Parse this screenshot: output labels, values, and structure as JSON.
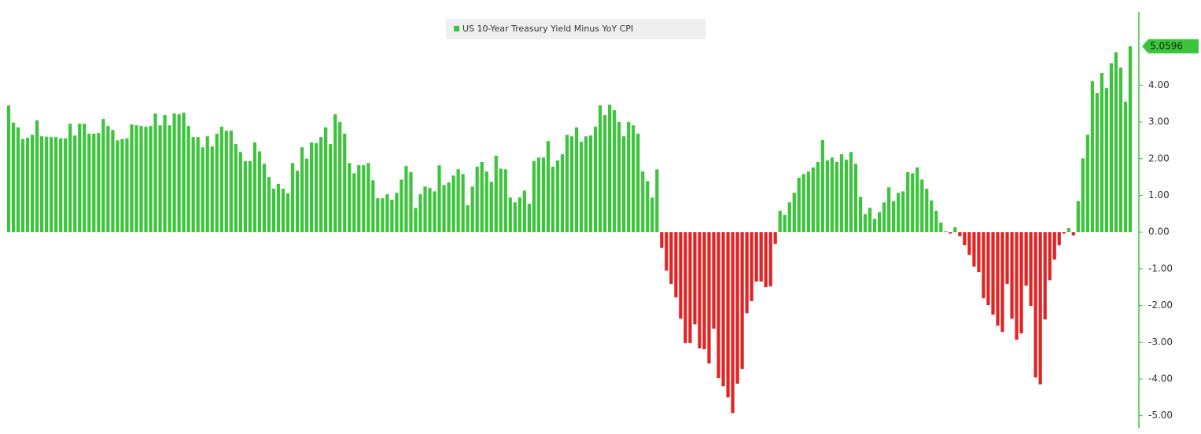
{
  "chart_data": {
    "type": "bar",
    "series": [
      {
        "name": "US 10-Year Treasury Yield Minus YoY CPI",
        "color": "#3cc43c",
        "negative_color": "#e02424",
        "values": [
          3.45,
          2.98,
          2.85,
          2.53,
          2.57,
          2.65,
          3.04,
          2.61,
          2.6,
          2.59,
          2.59,
          2.55,
          2.55,
          2.95,
          2.63,
          2.95,
          2.95,
          2.68,
          2.68,
          2.7,
          3.08,
          2.89,
          2.78,
          2.5,
          2.53,
          2.55,
          2.93,
          2.91,
          2.89,
          2.87,
          2.89,
          3.23,
          2.91,
          3.19,
          2.91,
          3.23,
          3.21,
          3.25,
          2.89,
          2.59,
          2.59,
          2.31,
          2.61,
          2.33,
          2.68,
          2.87,
          2.76,
          2.76,
          2.4,
          2.18,
          1.93,
          1.93,
          2.44,
          2.2,
          1.86,
          1.5,
          1.18,
          1.31,
          1.18,
          1.05,
          1.88,
          1.67,
          2.31,
          2.0,
          2.44,
          2.42,
          2.59,
          2.85,
          2.4,
          3.21,
          3.0,
          2.68,
          1.88,
          1.6,
          1.82,
          1.82,
          1.88,
          1.41,
          0.92,
          0.92,
          1.03,
          0.88,
          1.07,
          1.43,
          1.8,
          1.63,
          0.66,
          1.03,
          1.24,
          1.2,
          1.11,
          1.82,
          1.28,
          1.35,
          1.54,
          1.71,
          1.58,
          0.73,
          1.24,
          1.78,
          1.91,
          1.65,
          1.37,
          2.08,
          1.73,
          1.71,
          0.94,
          0.81,
          0.94,
          1.13,
          0.77,
          1.93,
          2.03,
          2.03,
          2.48,
          1.78,
          1.95,
          2.12,
          2.65,
          2.61,
          2.85,
          2.46,
          2.61,
          2.63,
          2.87,
          3.45,
          3.19,
          3.47,
          3.32,
          3.0,
          2.61,
          3.0,
          2.91,
          2.68,
          1.65,
          1.39,
          0.94,
          1.71,
          -0.43,
          -1.05,
          -1.41,
          -1.78,
          -2.36,
          -3.02,
          -3.02,
          -2.51,
          -3.17,
          -3.19,
          -3.58,
          -2.63,
          -3.98,
          -4.2,
          -4.5,
          -4.93,
          -4.13,
          -3.73,
          -2.21,
          -1.88,
          -1.35,
          -1.35,
          -1.5,
          -1.48,
          -0.32,
          0.58,
          0.47,
          0.81,
          1.07,
          1.48,
          1.58,
          1.65,
          1.76,
          1.91,
          2.51,
          1.95,
          2.03,
          1.91,
          2.12,
          1.97,
          2.18,
          1.86,
          0.96,
          0.49,
          0.66,
          0.36,
          0.54,
          0.81,
          1.22,
          0.84,
          1.07,
          1.11,
          1.63,
          1.6,
          1.76,
          1.43,
          1.18,
          0.86,
          0.58,
          0.26,
          0.02,
          -0.04,
          0.13,
          -0.11,
          -0.36,
          -0.62,
          -0.94,
          -1.09,
          -1.8,
          -1.99,
          -2.25,
          -2.55,
          -2.72,
          -1.41,
          -2.36,
          -2.93,
          -2.76,
          -1.46,
          -2.01,
          -3.96,
          -4.15,
          -2.38,
          -1.31,
          -0.75,
          -0.36,
          -0.04,
          0.11,
          -0.09,
          0.84,
          2.01,
          2.65,
          4.11,
          3.79,
          4.33,
          3.92,
          4.6,
          4.9,
          4.48,
          3.55,
          5.0596
        ]
      }
    ],
    "ylim": [
      -5.35,
      6.0
    ],
    "yticks": [
      {
        "value": -5,
        "label": "-5.00"
      },
      {
        "value": -4,
        "label": "-4.00"
      },
      {
        "value": -3,
        "label": "-3.00"
      },
      {
        "value": -2,
        "label": "-2.00"
      },
      {
        "value": -1,
        "label": "-1.00"
      },
      {
        "value": 0,
        "label": "0.00"
      },
      {
        "value": 1,
        "label": "1.00"
      },
      {
        "value": 2,
        "label": "2.00"
      },
      {
        "value": 3,
        "label": "3.00"
      },
      {
        "value": 4,
        "label": "4.00"
      }
    ],
    "legend": "top"
  }
}
